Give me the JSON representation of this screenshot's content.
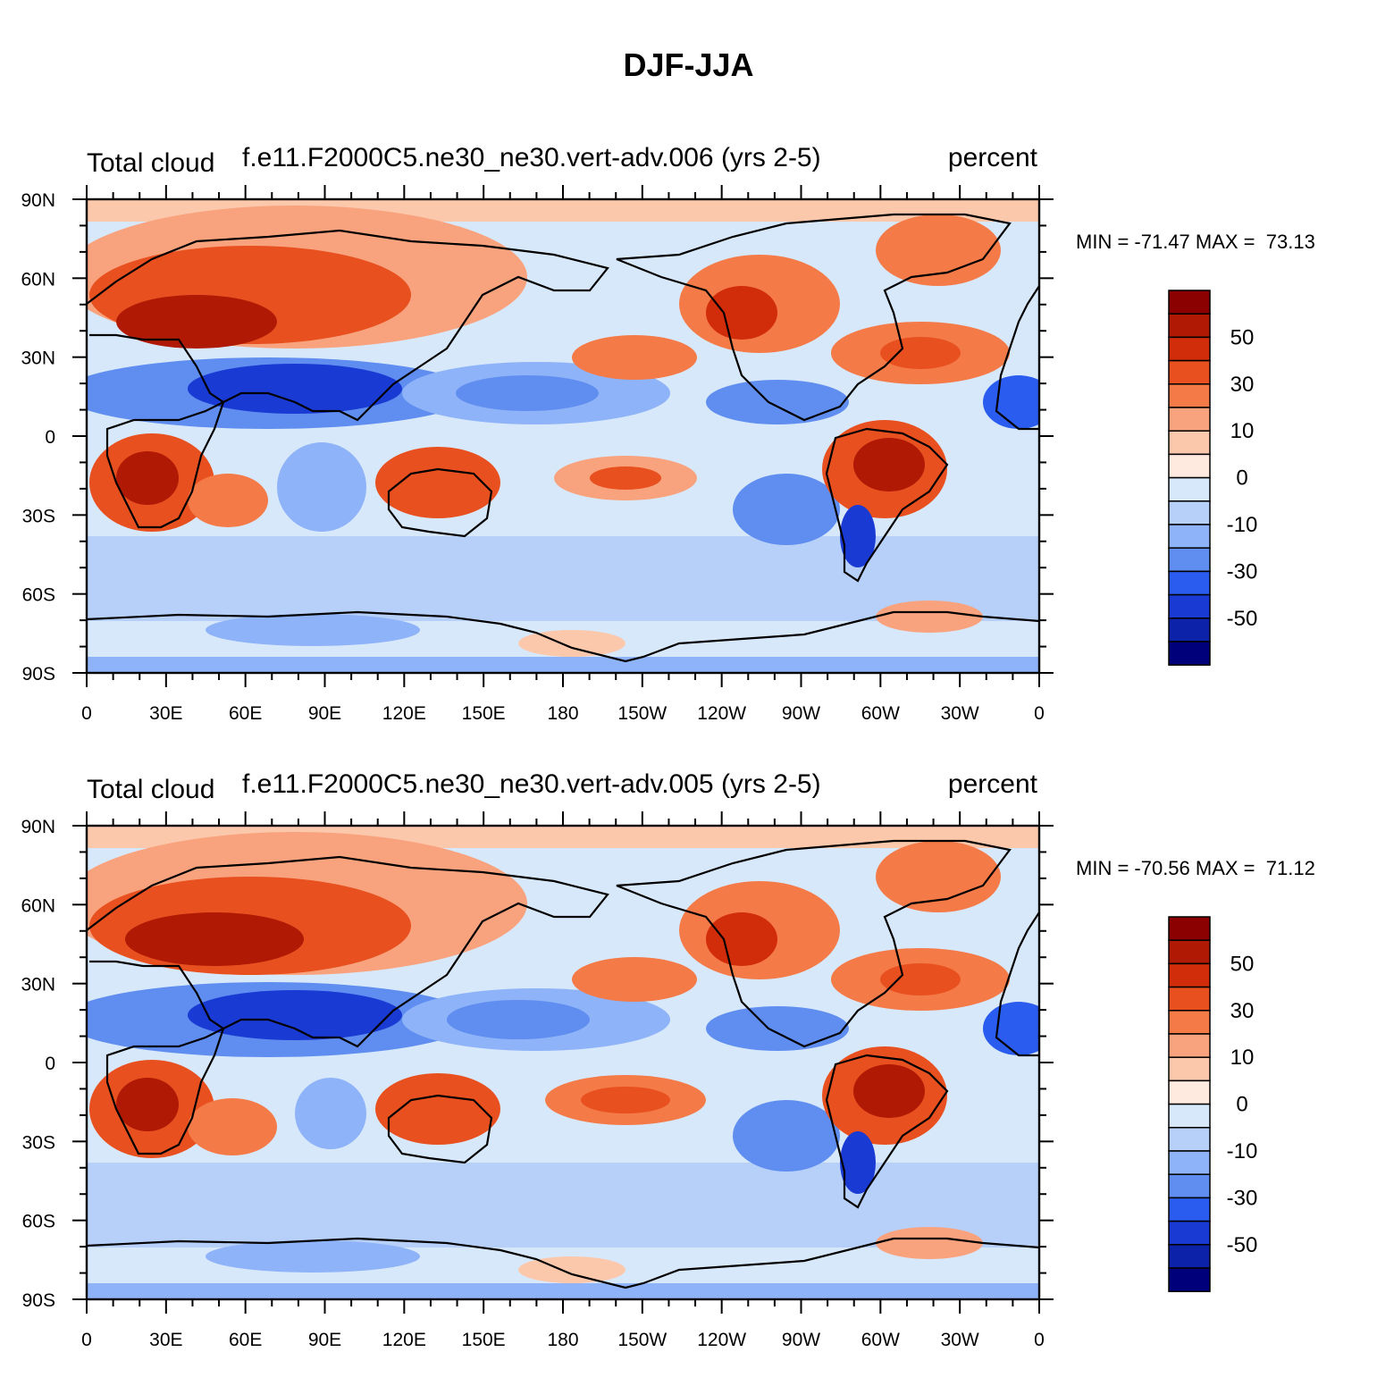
{
  "title": "DJF-JJA",
  "panels": [
    {
      "left_label": "Total cloud",
      "center_label": "f.e11.F2000C5.ne30_ne30.vert-adv.006 (yrs 2-5)",
      "right_label": "percent",
      "min_max": "MIN = -71.47 MAX =  73.13"
    },
    {
      "left_label": "Total cloud",
      "center_label": "f.e11.F2000C5.ne30_ne30.vert-adv.005 (yrs 2-5)",
      "right_label": "percent",
      "min_max": "MIN = -70.56 MAX =  71.12"
    }
  ],
  "axes": {
    "lat_labels": [
      "90N",
      "60N",
      "30N",
      "0",
      "30S",
      "60S",
      "90S"
    ],
    "lon_labels": [
      "0",
      "30E",
      "60E",
      "90E",
      "120E",
      "150E",
      "180",
      "150W",
      "120W",
      "90W",
      "60W",
      "30W",
      "0"
    ]
  },
  "colorbar": {
    "labels": [
      "50",
      "30",
      "10",
      "0",
      "-10",
      "-30",
      "-50"
    ],
    "colors": [
      "#8b0000",
      "#b01a04",
      "#d22d0a",
      "#e8501f",
      "#f47a48",
      "#f9a37e",
      "#fcc8ac",
      "#feeade",
      "#d8e8fb",
      "#b7d0fa",
      "#8fb3f8",
      "#5f8ef0",
      "#2b5cf0",
      "#1a3ad4",
      "#0c22a8",
      "#00007a"
    ]
  }
}
